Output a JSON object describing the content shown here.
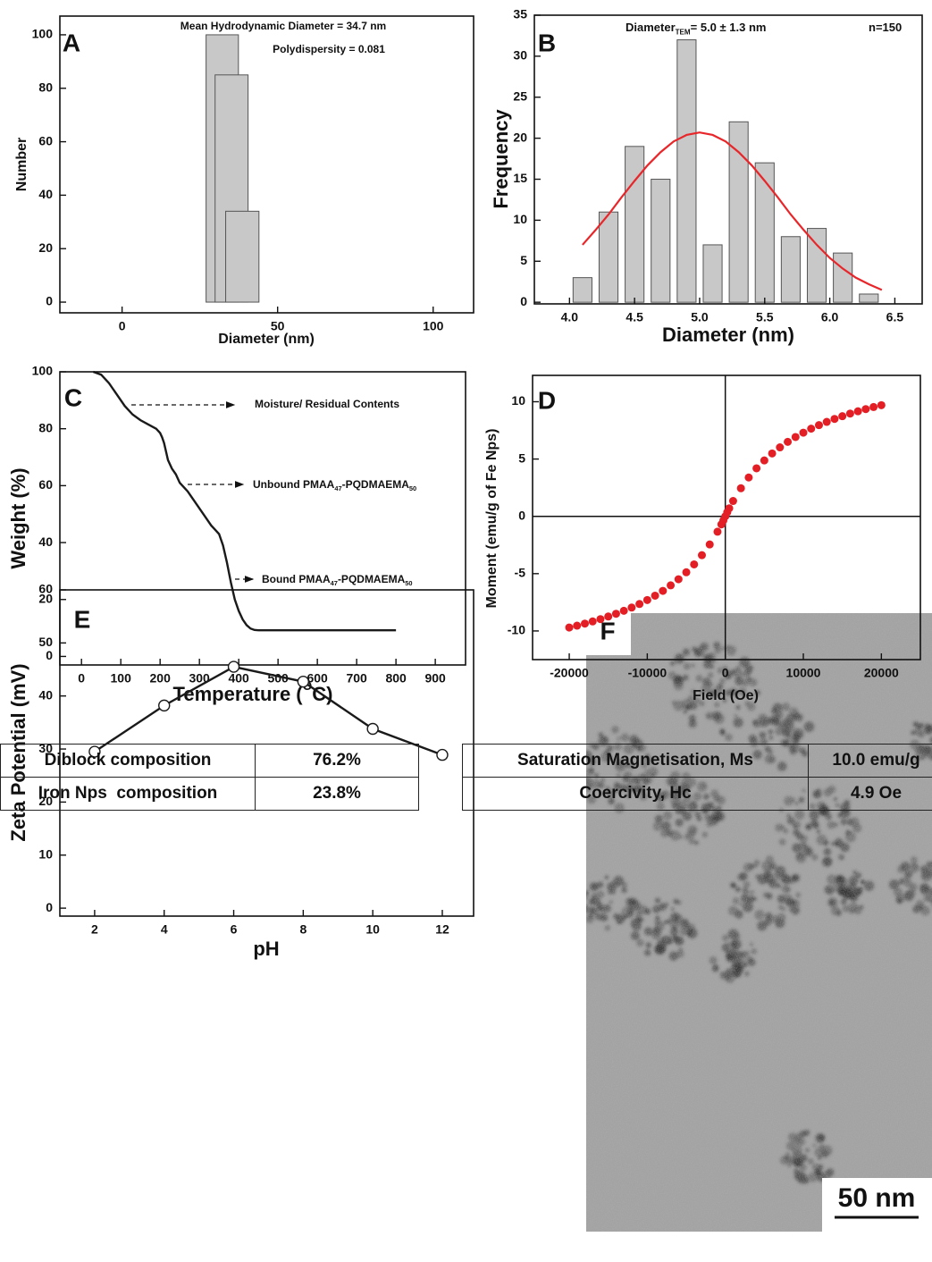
{
  "chart_data": [
    {
      "type": "bar",
      "panel_label": "A",
      "x_label": "Diameter (nm)",
      "y_label": "Number",
      "annotations": [
        [
          "Mean Hydrodynamic Diameter = 34.7 nm"
        ],
        [
          "Polydispersity = 0.081"
        ]
      ],
      "bar_edges": [
        [
          27,
          37.4
        ],
        [
          29.9,
          40.5
        ],
        [
          33.3,
          44
        ]
      ],
      "values": [
        100,
        85,
        34
      ],
      "color": "#c8c8c8",
      "xlim": [
        -20,
        113
      ],
      "ylim": [
        -4,
        107
      ],
      "xticks": [
        0,
        50,
        100
      ],
      "yticks": [
        0,
        20,
        40,
        60,
        80,
        100
      ]
    },
    {
      "type": "histogram",
      "panel_label": "B",
      "x_label": "Diameter (nm)",
      "y_label": "Frequency",
      "annotations": [
        [
          "Diameter",
          "TEM",
          "= 5.0 ± 1.3 nm"
        ],
        [
          "n=150"
        ]
      ],
      "bins": [
        4.0,
        4.2,
        4.4,
        4.6,
        4.8,
        5.0,
        5.2,
        5.4,
        5.6,
        5.8,
        6.0,
        6.2,
        6.4
      ],
      "values": [
        3,
        11,
        19,
        15,
        32,
        7,
        22,
        17,
        8,
        9,
        6,
        1
      ],
      "color": "#c8c8c8",
      "fit": {
        "color": "#e8262a",
        "x": [
          4.1,
          4.2,
          4.3,
          4.4,
          4.5,
          4.6,
          4.7,
          4.8,
          4.9,
          5.0,
          5.1,
          5.2,
          5.3,
          5.4,
          5.5,
          5.6,
          5.7,
          5.8,
          5.9,
          6.0,
          6.1,
          6.2,
          6.3,
          6.4
        ],
        "values": [
          7.0,
          8.8,
          10.7,
          12.8,
          14.8,
          16.7,
          18.3,
          19.6,
          20.4,
          20.7,
          20.4,
          19.6,
          18.3,
          16.7,
          14.8,
          12.8,
          10.7,
          8.8,
          7.0,
          5.4,
          4.1,
          3.0,
          2.2,
          1.5
        ]
      },
      "xlim": [
        3.73,
        6.71
      ],
      "ylim": [
        -0.2,
        35
      ],
      "xticks": [
        {
          "value": 4,
          "label": "4.0"
        },
        {
          "value": 4.5,
          "label": "4.5"
        },
        {
          "value": 5,
          "label": "5.0"
        },
        {
          "value": 5.5,
          "label": "5.5"
        },
        {
          "value": 6,
          "label": "6.0"
        },
        {
          "value": 6.5,
          "label": "6.5"
        }
      ],
      "yticks": [
        0,
        5,
        10,
        15,
        20,
        25,
        30,
        35
      ]
    },
    {
      "type": "line",
      "panel_label": "C",
      "x_label": [
        "Temperature (",
        "O",
        "C)"
      ],
      "y_label": "Weight (%)",
      "annotations": [
        [
          "Moisture/ Residual Contents"
        ],
        [
          "Unbound PMAA",
          "47",
          "-PQDMAEMA",
          "50"
        ],
        [
          "Bound PMAA",
          "47",
          "-PQDMAEMA",
          "50"
        ]
      ],
      "x": [
        30,
        50,
        70,
        90,
        110,
        130,
        150,
        170,
        190,
        200,
        205,
        210,
        215,
        220,
        230,
        240,
        250,
        260,
        270,
        280,
        290,
        300,
        310,
        320,
        330,
        340,
        350,
        360,
        370,
        380,
        390,
        400,
        410,
        420,
        430,
        440,
        450,
        470,
        500,
        600,
        700,
        800
      ],
      "values": [
        100,
        99,
        96,
        92,
        88,
        85,
        83,
        81.5,
        80,
        78.5,
        77,
        75,
        72,
        69,
        66,
        64,
        61,
        59.5,
        58,
        56,
        54,
        52,
        50,
        48,
        46,
        44.5,
        43,
        39,
        33,
        26,
        20,
        16,
        13,
        11,
        9.8,
        9.3,
        9.2,
        9.2,
        9.2,
        9.2,
        9.2,
        9.2
      ],
      "color": "#1a1a1a",
      "xlim": [
        -55,
        977
      ],
      "ylim": [
        -3,
        100
      ],
      "xticks": [
        0,
        100,
        200,
        300,
        400,
        500,
        600,
        700,
        800,
        900
      ],
      "yticks": [
        0,
        20,
        40,
        60,
        80,
        100
      ]
    },
    {
      "type": "scatter",
      "panel_label": "D",
      "x_label": "Field (Oe)",
      "y_label": "Moment (emu/g of Fe Nps)",
      "zero_lines": true,
      "x": [
        -20000,
        -19000,
        -18000,
        -17000,
        -16000,
        -15000,
        -14000,
        -13000,
        -12000,
        -11000,
        -10000,
        -9000,
        -8000,
        -7000,
        -6000,
        -5000,
        -4000,
        -3000,
        -2000,
        -1000,
        -500,
        -250,
        0,
        250,
        500,
        1000,
        2000,
        3000,
        4000,
        5000,
        6000,
        7000,
        8000,
        9000,
        10000,
        11000,
        12000,
        13000,
        14000,
        15000,
        16000,
        17000,
        18000,
        19000,
        20000
      ],
      "values": [
        -9.7,
        -9.54,
        -9.36,
        -9.17,
        -8.97,
        -8.74,
        -8.5,
        -8.24,
        -7.96,
        -7.65,
        -7.3,
        -6.92,
        -6.5,
        -6.02,
        -5.49,
        -4.88,
        -4.19,
        -3.39,
        -2.45,
        -1.34,
        -0.7,
        -0.36,
        0,
        0.36,
        0.7,
        1.34,
        2.45,
        3.39,
        4.19,
        4.88,
        5.49,
        6.02,
        6.5,
        6.92,
        7.3,
        7.65,
        7.96,
        8.24,
        8.5,
        8.74,
        8.97,
        9.17,
        9.36,
        9.54,
        9.7
      ],
      "color": "#e31e24",
      "xlim": [
        -24700,
        25000
      ],
      "ylim": [
        -12.5,
        12.3
      ],
      "xticks": [
        -20000,
        -10000,
        0,
        10000,
        20000
      ],
      "yticks": [
        -10,
        -5,
        0,
        5,
        10
      ]
    },
    {
      "type": "line",
      "panel_label": "E",
      "x_label": "pH",
      "y_label": "Zeta Potential (mV)",
      "marker": "open-circle",
      "x": [
        2,
        4,
        6,
        8,
        10,
        12
      ],
      "values": [
        29.5,
        38.2,
        45.5,
        42.7,
        33.8,
        28.9
      ],
      "color": "#1a1a1a",
      "xlim": [
        1,
        12.9
      ],
      "ylim": [
        -1.5,
        60
      ],
      "xticks": [
        2,
        4,
        6,
        8,
        10,
        12
      ],
      "yticks": [
        0,
        10,
        20,
        30,
        40,
        50,
        60
      ]
    }
  ],
  "tables": [
    {
      "rows": [
        [
          "Diblock composition",
          "76.2%"
        ],
        [
          "Iron Nps  composition",
          "23.8%"
        ]
      ]
    },
    {
      "rows": [
        [
          "Saturation Magnetisation, Ms",
          "10.0 emu/g"
        ],
        [
          "Coercivity, Hc",
          "4.9 Oe"
        ]
      ]
    }
  ],
  "image_panel": {
    "panel_label": "F",
    "scale_bar": "50 nm"
  }
}
